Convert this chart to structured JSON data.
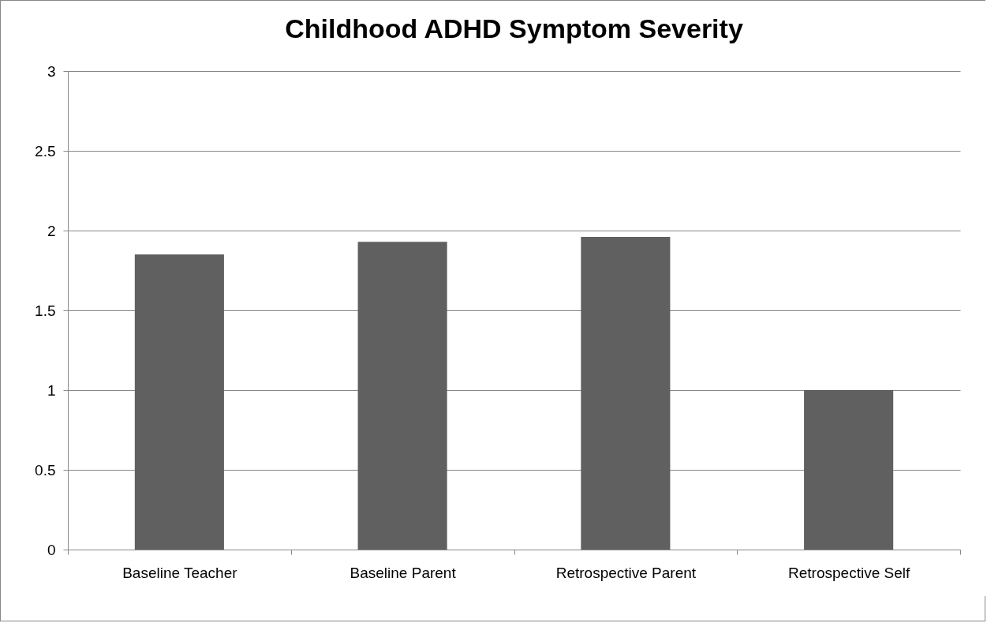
{
  "chart_data": {
    "type": "bar",
    "title": "Childhood ADHD Symptom Severity",
    "categories": [
      "Baseline Teacher",
      "Baseline Parent",
      "Retrospective Parent",
      "Retrospective Self"
    ],
    "values": [
      1.85,
      1.93,
      1.96,
      1.0
    ],
    "color": "#606060",
    "ylim": [
      0,
      3
    ],
    "yticks": [
      0,
      0.5,
      1,
      1.5,
      2,
      2.5,
      3
    ],
    "grid": "y"
  }
}
